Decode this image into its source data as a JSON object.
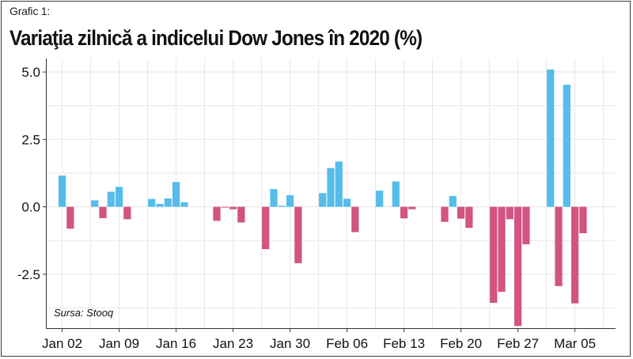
{
  "header": {
    "label": "Grafic 1:",
    "title": "Variaţia zilnică a indicelui Dow Jones în 2020 (%)"
  },
  "source_note": "Sursa: Stooq",
  "colors": {
    "positive": "#56BDEB",
    "negative": "#D15482",
    "grid": "#E6E6E6",
    "axis": "#333333"
  },
  "chart_data": {
    "type": "bar",
    "title": "Variaţia zilnică a indicelui Dow Jones în 2020 (%)",
    "xlabel": "",
    "ylabel": "",
    "ylim": [
      -4.5,
      5.5
    ],
    "yticks": [
      -2.5,
      0,
      2.5,
      5
    ],
    "ytick_labels": [
      "-2.5",
      "0.0",
      "2.5",
      "5.0"
    ],
    "xrange": [
      "2019-12-31",
      "2020-03-10"
    ],
    "xticks": [
      "2020-01-02",
      "2020-01-09",
      "2020-01-16",
      "2020-01-23",
      "2020-01-30",
      "2020-02-06",
      "2020-02-13",
      "2020-02-20",
      "2020-02-27",
      "2020-03-05"
    ],
    "xtick_labels": [
      "Jan 02",
      "Jan 09",
      "Jan 16",
      "Jan 23",
      "Jan 30",
      "Feb 06",
      "Feb 13",
      "Feb 20",
      "Feb 27",
      "Mar 05"
    ],
    "grid": true,
    "legend": "none",
    "x": [
      "2020-01-02",
      "2020-01-03",
      "2020-01-06",
      "2020-01-07",
      "2020-01-08",
      "2020-01-09",
      "2020-01-10",
      "2020-01-13",
      "2020-01-14",
      "2020-01-15",
      "2020-01-16",
      "2020-01-17",
      "2020-01-21",
      "2020-01-22",
      "2020-01-23",
      "2020-01-24",
      "2020-01-27",
      "2020-01-28",
      "2020-01-29",
      "2020-01-30",
      "2020-01-31",
      "2020-02-03",
      "2020-02-04",
      "2020-02-05",
      "2020-02-06",
      "2020-02-07",
      "2020-02-10",
      "2020-02-11",
      "2020-02-12",
      "2020-02-13",
      "2020-02-14",
      "2020-02-18",
      "2020-02-19",
      "2020-02-20",
      "2020-02-21",
      "2020-02-24",
      "2020-02-25",
      "2020-02-26",
      "2020-02-27",
      "2020-02-28",
      "2020-03-02",
      "2020-03-03",
      "2020-03-04",
      "2020-03-05",
      "2020-03-06"
    ],
    "values": [
      1.16,
      -0.81,
      0.24,
      -0.42,
      0.56,
      0.74,
      -0.46,
      0.29,
      0.11,
      0.31,
      0.92,
      0.17,
      -0.52,
      -0.03,
      -0.09,
      -0.58,
      -1.57,
      0.66,
      0.04,
      0.43,
      -2.09,
      0.51,
      1.44,
      1.68,
      0.3,
      -0.94,
      0.6,
      0.0,
      0.94,
      -0.43,
      -0.09,
      -0.56,
      0.4,
      -0.44,
      -0.78,
      -3.56,
      -3.15,
      -0.46,
      -4.42,
      -1.39,
      5.09,
      -2.94,
      4.53,
      -3.58,
      -0.98
    ]
  }
}
